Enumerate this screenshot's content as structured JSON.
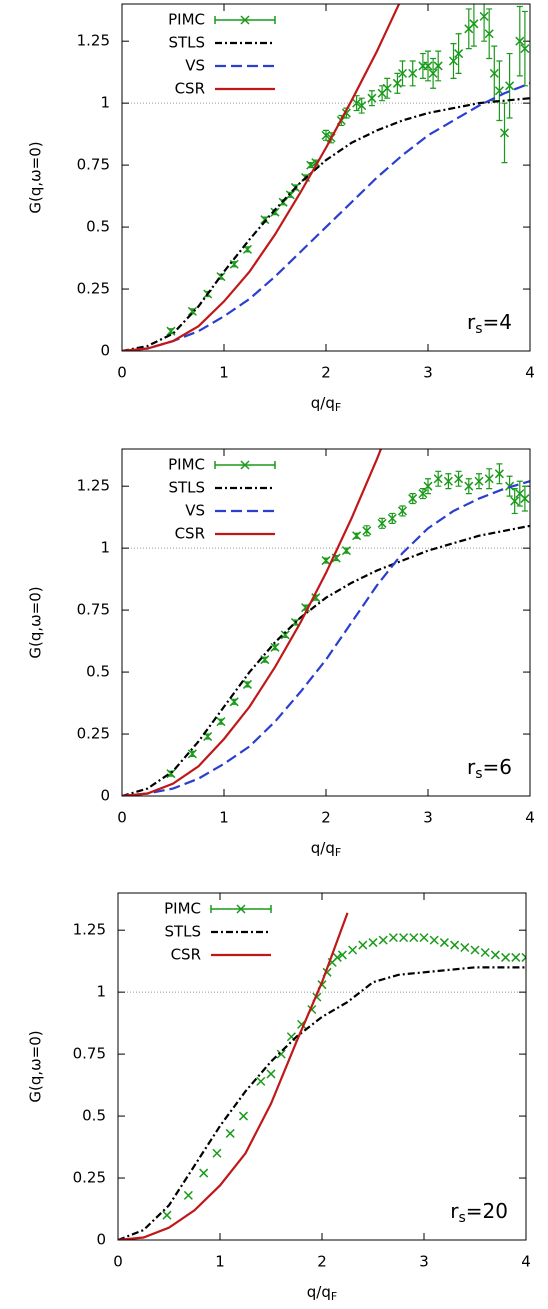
{
  "chart_data": [
    {
      "type": "line",
      "xlabel": "q/q",
      "xlabel_subscript": "F",
      "ylabel": "G(q,ω=0)",
      "annotation": {
        "main": "r",
        "subscript": "s",
        "suffix": "=4"
      },
      "xlim": [
        0,
        4
      ],
      "ylim": [
        0,
        1.4
      ],
      "xticks": [
        0,
        1,
        2,
        3,
        4
      ],
      "yticks": [
        0,
        0.25,
        0.5,
        0.75,
        1,
        1.25
      ],
      "hline": 1,
      "legend": "upper left",
      "series": [
        {
          "name": "PIMC",
          "color": "#1a9a1a",
          "style": "points",
          "marker": "x",
          "x": [
            0.48,
            0.69,
            0.84,
            0.97,
            1.1,
            1.23,
            1.4,
            1.5,
            1.58,
            1.65,
            1.7,
            1.8,
            1.85,
            1.9,
            2.0,
            2.05,
            2.15,
            2.2,
            2.3,
            2.35,
            2.45,
            2.55,
            2.6,
            2.7,
            2.75,
            2.85,
            2.95,
            3.0,
            3.05,
            3.1,
            3.25,
            3.3,
            3.4,
            3.45,
            3.55,
            3.6,
            3.65,
            3.7,
            3.75,
            3.8,
            3.9,
            3.95
          ],
          "values": [
            0.08,
            0.16,
            0.23,
            0.3,
            0.35,
            0.41,
            0.53,
            0.56,
            0.6,
            0.63,
            0.66,
            0.7,
            0.75,
            0.76,
            0.87,
            0.86,
            0.93,
            0.96,
            1.0,
            0.99,
            1.02,
            1.04,
            1.06,
            1.08,
            1.12,
            1.12,
            1.15,
            1.15,
            1.12,
            1.15,
            1.17,
            1.2,
            1.3,
            1.32,
            1.35,
            1.28,
            1.12,
            1.05,
            0.88,
            1.07,
            1.25,
            1.22
          ],
          "errors": [
            0.01,
            0.01,
            0.01,
            0.01,
            0.01,
            0.01,
            0.01,
            0.01,
            0.01,
            0.01,
            0.01,
            0.01,
            0.01,
            0.01,
            0.02,
            0.02,
            0.02,
            0.02,
            0.03,
            0.03,
            0.03,
            0.03,
            0.04,
            0.04,
            0.05,
            0.05,
            0.05,
            0.06,
            0.06,
            0.06,
            0.07,
            0.08,
            0.08,
            0.09,
            0.1,
            0.1,
            0.11,
            0.12,
            0.12,
            0.13,
            0.14,
            0.15
          ]
        },
        {
          "name": "STLS",
          "color": "#000000",
          "style": "dash-dot",
          "x": [
            0,
            0.25,
            0.5,
            0.75,
            1,
            1.25,
            1.5,
            1.75,
            2,
            2.25,
            2.5,
            2.75,
            3,
            3.25,
            3.5,
            3.75,
            4
          ],
          "values": [
            0,
            0.02,
            0.07,
            0.18,
            0.32,
            0.45,
            0.57,
            0.68,
            0.77,
            0.84,
            0.89,
            0.93,
            0.96,
            0.98,
            1.0,
            1.01,
            1.02
          ]
        },
        {
          "name": "VS",
          "color": "#2a3fd0",
          "style": "dashed",
          "x": [
            0,
            0.25,
            0.5,
            0.75,
            1,
            1.25,
            1.5,
            1.75,
            2,
            2.25,
            2.5,
            2.75,
            3,
            3.25,
            3.5,
            3.75,
            4
          ],
          "values": [
            0,
            0.01,
            0.04,
            0.08,
            0.14,
            0.21,
            0.3,
            0.4,
            0.5,
            0.6,
            0.7,
            0.79,
            0.87,
            0.93,
            0.99,
            1.04,
            1.08
          ]
        },
        {
          "name": "CSR",
          "color": "#c01818",
          "style": "solid",
          "x": [
            0,
            0.25,
            0.5,
            0.75,
            1,
            1.25,
            1.5,
            1.75,
            2,
            2.25,
            2.5,
            2.75
          ],
          "values": [
            0,
            0.01,
            0.04,
            0.1,
            0.2,
            0.32,
            0.47,
            0.64,
            0.82,
            1.01,
            1.21,
            1.43
          ]
        }
      ]
    },
    {
      "type": "line",
      "xlabel": "q/q",
      "xlabel_subscript": "F",
      "ylabel": "G(q,ω=0)",
      "annotation": {
        "main": "r",
        "subscript": "s",
        "suffix": "=6"
      },
      "xlim": [
        0,
        4
      ],
      "ylim": [
        0,
        1.4
      ],
      "xticks": [
        0,
        1,
        2,
        3,
        4
      ],
      "yticks": [
        0,
        0.25,
        0.5,
        0.75,
        1,
        1.25
      ],
      "hline": 1,
      "legend": "upper left",
      "series": [
        {
          "name": "PIMC",
          "color": "#1a9a1a",
          "style": "points",
          "marker": "x",
          "x": [
            0.48,
            0.69,
            0.84,
            0.97,
            1.1,
            1.23,
            1.4,
            1.5,
            1.6,
            1.7,
            1.8,
            1.9,
            2.0,
            2.1,
            2.2,
            2.3,
            2.4,
            2.55,
            2.65,
            2.75,
            2.85,
            2.95,
            3.0,
            3.1,
            3.2,
            3.3,
            3.4,
            3.5,
            3.6,
            3.7,
            3.8,
            3.85,
            3.9,
            3.95
          ],
          "values": [
            0.09,
            0.17,
            0.24,
            0.3,
            0.38,
            0.45,
            0.55,
            0.6,
            0.65,
            0.7,
            0.76,
            0.8,
            0.95,
            0.96,
            0.99,
            1.05,
            1.07,
            1.1,
            1.12,
            1.15,
            1.2,
            1.22,
            1.25,
            1.28,
            1.27,
            1.28,
            1.25,
            1.27,
            1.28,
            1.3,
            1.25,
            1.19,
            1.22,
            1.2
          ],
          "errors": [
            0.01,
            0.01,
            0.01,
            0.01,
            0.01,
            0.01,
            0.01,
            0.01,
            0.01,
            0.01,
            0.01,
            0.01,
            0.01,
            0.01,
            0.01,
            0.01,
            0.02,
            0.02,
            0.02,
            0.02,
            0.02,
            0.02,
            0.03,
            0.03,
            0.03,
            0.03,
            0.03,
            0.03,
            0.04,
            0.04,
            0.04,
            0.05,
            0.05,
            0.05
          ]
        },
        {
          "name": "STLS",
          "color": "#000000",
          "style": "dash-dot",
          "x": [
            0,
            0.25,
            0.5,
            0.75,
            1,
            1.25,
            1.5,
            1.75,
            2,
            2.25,
            2.5,
            2.75,
            3,
            3.25,
            3.5,
            3.75,
            4
          ],
          "values": [
            0,
            0.03,
            0.1,
            0.22,
            0.36,
            0.5,
            0.62,
            0.72,
            0.8,
            0.86,
            0.91,
            0.95,
            0.99,
            1.02,
            1.05,
            1.07,
            1.09
          ]
        },
        {
          "name": "VS",
          "color": "#2a3fd0",
          "style": "dashed",
          "x": [
            0,
            0.25,
            0.5,
            0.75,
            1,
            1.25,
            1.5,
            1.75,
            2,
            2.25,
            2.5,
            2.75,
            3,
            3.25,
            3.5,
            3.75,
            4
          ],
          "values": [
            0,
            0.01,
            0.03,
            0.07,
            0.13,
            0.2,
            0.3,
            0.42,
            0.55,
            0.7,
            0.85,
            0.98,
            1.08,
            1.15,
            1.2,
            1.24,
            1.27
          ]
        },
        {
          "name": "CSR",
          "color": "#c01818",
          "style": "solid",
          "x": [
            0,
            0.25,
            0.5,
            0.75,
            1,
            1.25,
            1.5,
            1.75,
            2,
            2.25,
            2.5,
            2.75
          ],
          "values": [
            0,
            0.01,
            0.05,
            0.12,
            0.23,
            0.36,
            0.52,
            0.7,
            0.9,
            1.12,
            1.36,
            1.62
          ]
        }
      ]
    },
    {
      "type": "line",
      "xlabel": "q/q",
      "xlabel_subscript": "F",
      "ylabel": "G(q,ω=0)",
      "annotation": {
        "main": "r",
        "subscript": "s",
        "suffix": "=20"
      },
      "xlim": [
        0,
        4
      ],
      "ylim": [
        0,
        1.4
      ],
      "xticks": [
        0,
        1,
        2,
        3,
        4
      ],
      "yticks": [
        0,
        0.25,
        0.5,
        0.75,
        1,
        1.25
      ],
      "hline": 1,
      "legend": "upper left",
      "series": [
        {
          "name": "PIMC",
          "color": "#1a9a1a",
          "style": "points",
          "marker": "x",
          "x": [
            0.48,
            0.69,
            0.84,
            0.97,
            1.1,
            1.23,
            1.4,
            1.5,
            1.6,
            1.7,
            1.8,
            1.9,
            1.95,
            2.0,
            2.05,
            2.1,
            2.15,
            2.2,
            2.3,
            2.4,
            2.5,
            2.6,
            2.7,
            2.8,
            2.9,
            3.0,
            3.1,
            3.2,
            3.3,
            3.4,
            3.5,
            3.6,
            3.7,
            3.8,
            3.9,
            4.0
          ],
          "values": [
            0.1,
            0.18,
            0.27,
            0.35,
            0.43,
            0.5,
            0.64,
            0.67,
            0.75,
            0.82,
            0.87,
            0.93,
            0.98,
            1.03,
            1.08,
            1.12,
            1.14,
            1.15,
            1.17,
            1.19,
            1.2,
            1.21,
            1.22,
            1.22,
            1.22,
            1.22,
            1.21,
            1.2,
            1.19,
            1.18,
            1.17,
            1.16,
            1.15,
            1.14,
            1.14,
            1.14
          ]
        },
        {
          "name": "STLS",
          "color": "#000000",
          "style": "dash-dot",
          "x": [
            0,
            0.25,
            0.5,
            0.75,
            1,
            1.25,
            1.5,
            1.75,
            2,
            2.25,
            2.5,
            2.75,
            3,
            3.25,
            3.5,
            3.75,
            4
          ],
          "values": [
            0,
            0.04,
            0.14,
            0.3,
            0.46,
            0.6,
            0.72,
            0.82,
            0.9,
            0.96,
            1.04,
            1.07,
            1.08,
            1.09,
            1.1,
            1.1,
            1.1
          ]
        },
        {
          "name": "CSR",
          "color": "#c01818",
          "style": "solid",
          "x": [
            0,
            0.25,
            0.5,
            0.75,
            1,
            1.25,
            1.5,
            1.75,
            2,
            2.25
          ],
          "values": [
            0,
            0.01,
            0.05,
            0.12,
            0.22,
            0.35,
            0.55,
            0.8,
            1.04,
            1.32
          ]
        }
      ]
    }
  ]
}
